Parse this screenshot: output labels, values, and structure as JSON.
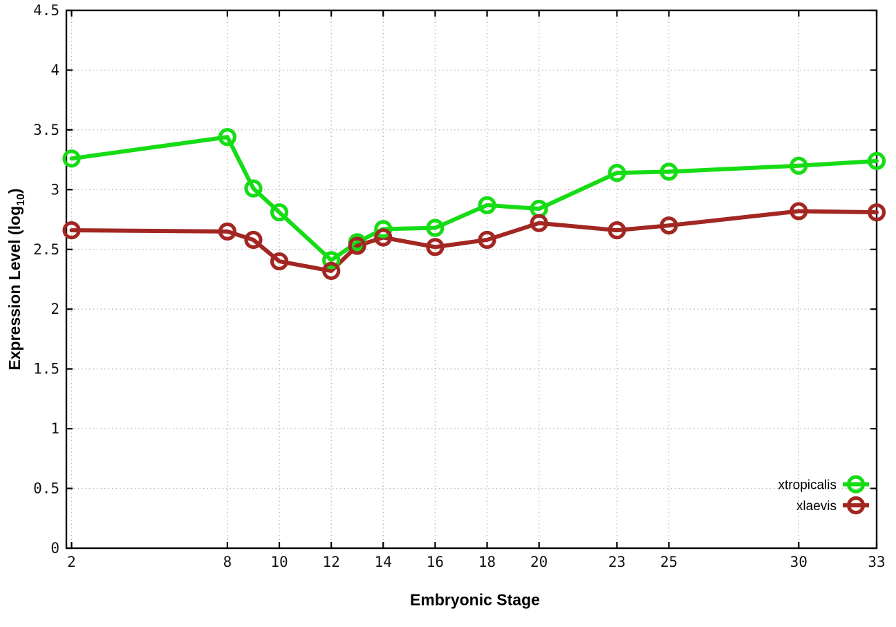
{
  "figure": {
    "background": "#ffffff",
    "border_color": "#000000",
    "grid_color": "#b8b8b8",
    "tick_label_color": "#111111"
  },
  "chart_data": {
    "type": "line",
    "title": "",
    "xlabel": "Embryonic Stage",
    "ylabel": {
      "prefix": "Expression Level (log",
      "sub": "10",
      "suffix": ")"
    },
    "xlim": [
      1.8,
      33
    ],
    "ylim": [
      0,
      4.5
    ],
    "x_ticks": [
      2,
      8,
      10,
      12,
      14,
      16,
      18,
      20,
      23,
      25,
      30,
      33
    ],
    "y_ticks": [
      0,
      0.5,
      1,
      1.5,
      2,
      2.5,
      3,
      3.5,
      4,
      4.5
    ],
    "grid": true,
    "legend_position": "inside-bottom-right",
    "series": [
      {
        "name": "xtropicalis",
        "color": "#16dc16",
        "marker": "open-circle",
        "x": [
          2,
          8,
          9,
          10,
          12,
          13,
          14,
          16,
          18,
          20,
          23,
          25,
          30,
          33
        ],
        "y": [
          3.26,
          3.44,
          3.01,
          2.81,
          2.41,
          2.56,
          2.67,
          2.68,
          2.87,
          2.84,
          3.14,
          3.15,
          3.2,
          3.24
        ]
      },
      {
        "name": "xlaevis",
        "color": "#a22722",
        "marker": "open-circle",
        "x": [
          2,
          8,
          9,
          10,
          12,
          13,
          14,
          16,
          18,
          20,
          23,
          25,
          30,
          33
        ],
        "y": [
          2.66,
          2.65,
          2.58,
          2.4,
          2.32,
          2.53,
          2.6,
          2.52,
          2.58,
          2.72,
          2.66,
          2.7,
          2.82,
          2.81
        ]
      }
    ]
  }
}
